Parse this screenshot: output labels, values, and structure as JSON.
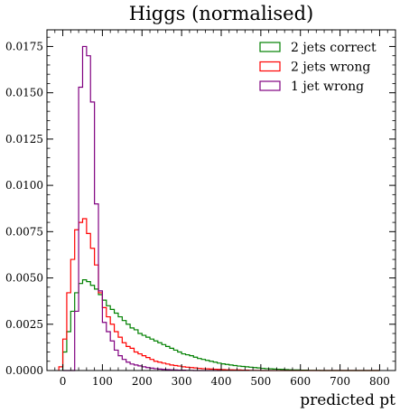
{
  "chart_data": {
    "type": "line",
    "title": "Higgs (normalised)",
    "xlabel": "predicted pt",
    "ylabel": "",
    "xlim": [
      -40,
      840
    ],
    "ylim": [
      0,
      0.0184
    ],
    "xticks": [
      "0",
      "100",
      "200",
      "300",
      "400",
      "500",
      "600",
      "700",
      "800"
    ],
    "yticks": [
      "0.0000",
      "0.0025",
      "0.0050",
      "0.0075",
      "0.0100",
      "0.0125",
      "0.0150",
      "0.0175"
    ],
    "grid": false,
    "legend_position": "top-right",
    "bin_width": 10,
    "series": [
      {
        "name": "2 jets correct",
        "color": "#008000",
        "x_start": 0,
        "values": [
          0.001,
          0.0021,
          0.0032,
          0.0042,
          0.0047,
          0.0049,
          0.0048,
          0.0046,
          0.0044,
          0.0041,
          0.0038,
          0.0035,
          0.0033,
          0.0031,
          0.0029,
          0.0027,
          0.0025,
          0.0023,
          0.0022,
          0.002,
          0.0019,
          0.0018,
          0.0017,
          0.0016,
          0.0015,
          0.0014,
          0.0013,
          0.0012,
          0.0011,
          0.001,
          0.0009,
          0.00085,
          0.0008,
          0.00072,
          0.00065,
          0.0006,
          0.00055,
          0.0005,
          0.00045,
          0.0004,
          0.00036,
          0.00033,
          0.0003,
          0.00027,
          0.00024,
          0.00022,
          0.0002,
          0.00018,
          0.00016,
          0.00014,
          0.00012,
          0.0001,
          9e-05,
          8e-05,
          7e-05,
          6e-05,
          5e-05,
          4e-05,
          3e-05,
          3e-05,
          2e-05,
          2e-05,
          1e-05,
          1e-05,
          1e-05,
          0.0,
          0.0,
          0.0,
          0.0,
          0.0,
          0.0,
          0.0,
          0.0,
          0.0,
          0.0,
          0.0,
          0.0,
          0.0,
          0.0,
          0.0
        ]
      },
      {
        "name": "2 jets wrong",
        "color": "#ff0000",
        "x_start": -10,
        "values": [
          0.0002,
          0.0017,
          0.0042,
          0.006,
          0.0076,
          0.008,
          0.0082,
          0.0074,
          0.0066,
          0.0057,
          0.0042,
          0.0034,
          0.0029,
          0.0025,
          0.0021,
          0.0018,
          0.0015,
          0.0013,
          0.0012,
          0.001,
          0.0009,
          0.0008,
          0.0007,
          0.0006,
          0.0005,
          0.00045,
          0.0004,
          0.00035,
          0.0003,
          0.00027,
          0.00024,
          0.0002,
          0.00018,
          0.00016,
          0.00014,
          0.00012,
          0.0001,
          9e-05,
          8e-05,
          7e-05,
          6e-05,
          5e-05,
          4e-05,
          4e-05,
          3e-05,
          3e-05,
          2e-05,
          2e-05,
          1e-05,
          1e-05,
          1e-05,
          0.0,
          0.0,
          0.0,
          0.0,
          0.0,
          0.0,
          0.0,
          0.0,
          0.0,
          0.0,
          0.0,
          0.0,
          0.0,
          0.0,
          0.0,
          0.0,
          0.0,
          0.0,
          0.0,
          0.0,
          0.0,
          0.0,
          0.0,
          0.0,
          0.0,
          0.0,
          0.0,
          0.0,
          0.0,
          0.0
        ]
      },
      {
        "name": "1 jet wrong",
        "color": "#800080",
        "x_start": 0,
        "values": [
          0.0,
          0.0,
          0.0,
          0.0032,
          0.0153,
          0.0175,
          0.017,
          0.0145,
          0.009,
          0.0043,
          0.0026,
          0.0021,
          0.0016,
          0.0011,
          0.0008,
          0.0006,
          0.00045,
          0.00035,
          0.0003,
          0.00025,
          0.0002,
          0.00016,
          0.00013,
          0.0001,
          8e-05,
          6e-05,
          5e-05,
          4e-05,
          3e-05,
          2e-05,
          2e-05,
          1e-05,
          1e-05,
          0.0,
          0.0,
          0.0,
          0.0,
          0.0,
          0.0,
          0.0
        ]
      }
    ]
  }
}
